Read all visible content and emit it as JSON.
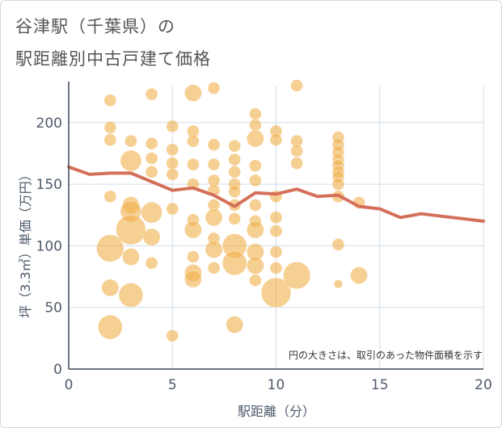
{
  "title": {
    "line1": "谷津駅（千葉県）の",
    "line2": "駅距離別中古戸建て価格"
  },
  "chart_data": {
    "type": "scatter",
    "xlabel": "駅距離（分）",
    "ylabel": "坪（3.3㎡）単価（万円）",
    "xlim": [
      0,
      20
    ],
    "ylim": [
      0,
      230
    ],
    "xticks": [
      0,
      5,
      10,
      15,
      20
    ],
    "yticks": [
      0,
      50,
      100,
      150,
      200
    ],
    "grid": true,
    "note": "円の大きさは、取引のあった物件面積を示す",
    "colors": {
      "bubble": "#f0b24f",
      "line": "#d4705a",
      "grid": "#d0dbe6",
      "axis": "#3e4a5a"
    },
    "bubbles": [
      {
        "x": 2,
        "y": 218,
        "s": 1
      },
      {
        "x": 2,
        "y": 196,
        "s": 1
      },
      {
        "x": 2,
        "y": 186,
        "s": 1
      },
      {
        "x": 2,
        "y": 140,
        "s": 1
      },
      {
        "x": 2,
        "y": 98,
        "s": 5
      },
      {
        "x": 2,
        "y": 66,
        "s": 2
      },
      {
        "x": 2,
        "y": 34,
        "s": 4
      },
      {
        "x": 3,
        "y": 185,
        "s": 1
      },
      {
        "x": 3,
        "y": 169,
        "s": 3
      },
      {
        "x": 3,
        "y": 133,
        "s": 2
      },
      {
        "x": 3,
        "y": 128,
        "s": 3
      },
      {
        "x": 3,
        "y": 113,
        "s": 6
      },
      {
        "x": 3,
        "y": 91,
        "s": 2
      },
      {
        "x": 3,
        "y": 60,
        "s": 4
      },
      {
        "x": 4,
        "y": 223,
        "s": 1
      },
      {
        "x": 4,
        "y": 183,
        "s": 1
      },
      {
        "x": 4,
        "y": 171,
        "s": 1
      },
      {
        "x": 4,
        "y": 160,
        "s": 1
      },
      {
        "x": 4,
        "y": 127,
        "s": 3
      },
      {
        "x": 4,
        "y": 107,
        "s": 2
      },
      {
        "x": 4,
        "y": 86,
        "s": 1
      },
      {
        "x": 5,
        "y": 197,
        "s": 1
      },
      {
        "x": 5,
        "y": 178,
        "s": 1
      },
      {
        "x": 5,
        "y": 167,
        "s": 1
      },
      {
        "x": 5,
        "y": 158,
        "s": 1
      },
      {
        "x": 5,
        "y": 130,
        "s": 1
      },
      {
        "x": 5,
        "y": 27,
        "s": 1
      },
      {
        "x": 6,
        "y": 224,
        "s": 2
      },
      {
        "x": 6,
        "y": 193,
        "s": 1
      },
      {
        "x": 6,
        "y": 185,
        "s": 1
      },
      {
        "x": 6,
        "y": 166,
        "s": 1
      },
      {
        "x": 6,
        "y": 150,
        "s": 1
      },
      {
        "x": 6,
        "y": 121,
        "s": 1
      },
      {
        "x": 6,
        "y": 113,
        "s": 2
      },
      {
        "x": 6,
        "y": 91,
        "s": 1
      },
      {
        "x": 6,
        "y": 78,
        "s": 2
      },
      {
        "x": 6,
        "y": 73,
        "s": 2
      },
      {
        "x": 7,
        "y": 228,
        "s": 1
      },
      {
        "x": 7,
        "y": 182,
        "s": 1
      },
      {
        "x": 7,
        "y": 166,
        "s": 1
      },
      {
        "x": 7,
        "y": 153,
        "s": 1
      },
      {
        "x": 7,
        "y": 145,
        "s": 1
      },
      {
        "x": 7,
        "y": 133,
        "s": 1
      },
      {
        "x": 7,
        "y": 123,
        "s": 2
      },
      {
        "x": 7,
        "y": 106,
        "s": 1
      },
      {
        "x": 7,
        "y": 97,
        "s": 2
      },
      {
        "x": 7,
        "y": 82,
        "s": 1
      },
      {
        "x": 8,
        "y": 181,
        "s": 1
      },
      {
        "x": 8,
        "y": 170,
        "s": 1
      },
      {
        "x": 8,
        "y": 160,
        "s": 1
      },
      {
        "x": 8,
        "y": 150,
        "s": 1
      },
      {
        "x": 8,
        "y": 144,
        "s": 1
      },
      {
        "x": 8,
        "y": 133,
        "s": 1
      },
      {
        "x": 8,
        "y": 122,
        "s": 1
      },
      {
        "x": 8,
        "y": 100,
        "s": 4
      },
      {
        "x": 8,
        "y": 86,
        "s": 4
      },
      {
        "x": 8,
        "y": 36,
        "s": 2
      },
      {
        "x": 9,
        "y": 207,
        "s": 1
      },
      {
        "x": 9,
        "y": 198,
        "s": 1
      },
      {
        "x": 9,
        "y": 187,
        "s": 2
      },
      {
        "x": 9,
        "y": 165,
        "s": 1
      },
      {
        "x": 9,
        "y": 153,
        "s": 1
      },
      {
        "x": 9,
        "y": 133,
        "s": 1
      },
      {
        "x": 9,
        "y": 120,
        "s": 1
      },
      {
        "x": 9,
        "y": 113,
        "s": 2
      },
      {
        "x": 9,
        "y": 95,
        "s": 2
      },
      {
        "x": 9,
        "y": 84,
        "s": 2
      },
      {
        "x": 9,
        "y": 72,
        "s": 1
      },
      {
        "x": 10,
        "y": 193,
        "s": 1
      },
      {
        "x": 10,
        "y": 186,
        "s": 1
      },
      {
        "x": 10,
        "y": 140,
        "s": 1
      },
      {
        "x": 10,
        "y": 123,
        "s": 1
      },
      {
        "x": 10,
        "y": 112,
        "s": 1
      },
      {
        "x": 10,
        "y": 95,
        "s": 1
      },
      {
        "x": 10,
        "y": 82,
        "s": 1
      },
      {
        "x": 10,
        "y": 62,
        "s": 6
      },
      {
        "x": 11,
        "y": 230,
        "s": 1
      },
      {
        "x": 11,
        "y": 185,
        "s": 1
      },
      {
        "x": 11,
        "y": 177,
        "s": 1
      },
      {
        "x": 11,
        "y": 167,
        "s": 1
      },
      {
        "x": 11,
        "y": 76,
        "s": 5
      },
      {
        "x": 13,
        "y": 188,
        "s": 1
      },
      {
        "x": 13,
        "y": 182,
        "s": 1
      },
      {
        "x": 13,
        "y": 176,
        "s": 1
      },
      {
        "x": 13,
        "y": 170,
        "s": 1
      },
      {
        "x": 13,
        "y": 165,
        "s": 1
      },
      {
        "x": 13,
        "y": 160,
        "s": 1
      },
      {
        "x": 13,
        "y": 156,
        "s": 1
      },
      {
        "x": 13,
        "y": 150,
        "s": 1
      },
      {
        "x": 13,
        "y": 140,
        "s": 1
      },
      {
        "x": 13,
        "y": 101,
        "s": 1
      },
      {
        "x": 13,
        "y": 69,
        "s": 0.5
      },
      {
        "x": 14,
        "y": 135,
        "s": 1
      },
      {
        "x": 14,
        "y": 76,
        "s": 2
      }
    ],
    "series": [
      {
        "x": [
          0,
          1,
          2,
          3,
          4,
          5,
          6,
          7,
          8,
          9,
          10,
          11,
          12,
          13,
          14,
          15,
          16,
          17,
          18,
          19,
          20
        ],
        "values": [
          164,
          158,
          159,
          159,
          152,
          145,
          147,
          141,
          132,
          143,
          142,
          146,
          140,
          141,
          132,
          130,
          123,
          126,
          124,
          122,
          120
        ]
      }
    ]
  }
}
